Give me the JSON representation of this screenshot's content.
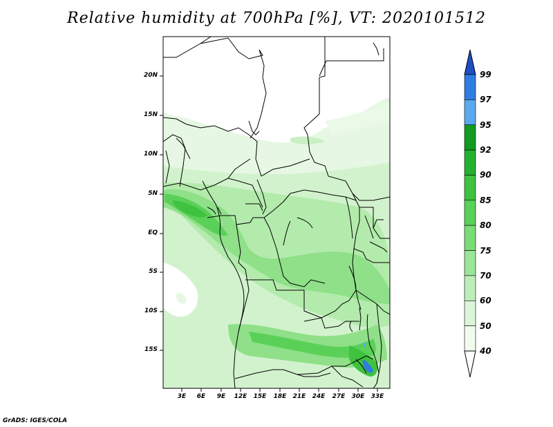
{
  "title": "Relative humidity at 700hPa [%], VT: 2020101512",
  "credit": "GrADS: IGES/COLA",
  "y_ticks": [
    "20N",
    "15N",
    "10N",
    "5N",
    "EQ",
    "5S",
    "10S",
    "15S"
  ],
  "x_ticks": [
    "3E",
    "6E",
    "9E",
    "12E",
    "15E",
    "18E",
    "21E",
    "24E",
    "27E",
    "30E",
    "33E"
  ],
  "colorbar": {
    "labels": [
      "99",
      "97",
      "95",
      "92",
      "90",
      "85",
      "80",
      "75",
      "70",
      "60",
      "50",
      "40"
    ],
    "colors": [
      "#1e4fc4",
      "#2f7de0",
      "#5aa9ee",
      "#139b1f",
      "#26b02f",
      "#3ec23f",
      "#58d158",
      "#79dc75",
      "#9be697",
      "#bdeeb8",
      "#dcf5d8",
      "#f1fcef"
    ]
  },
  "colors": {
    "light_green": "#dcf5d8",
    "mid_green": "#9be697",
    "dark_green": "#3ec23f",
    "blue": "#2f7de0"
  }
}
